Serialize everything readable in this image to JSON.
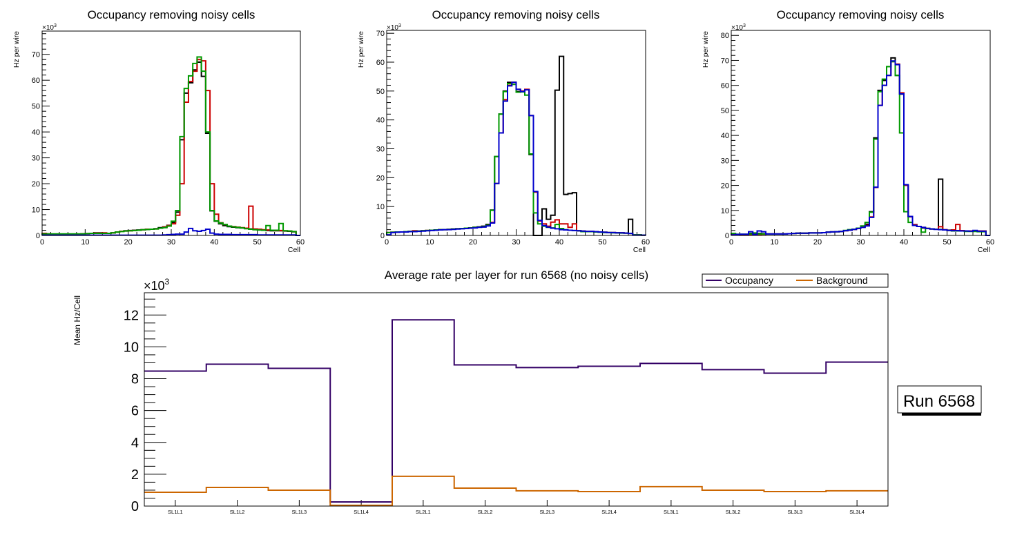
{
  "chart_data": [
    {
      "type": "line",
      "subtype": "step-histogram",
      "title": "Occupancy removing noisy cells",
      "xlabel": "Cell",
      "ylabel": "Hz per wire",
      "y_multiplier_label": "×10",
      "y_multiplier_exp": "3",
      "xlim": [
        0,
        60
      ],
      "ylim": [
        0,
        79
      ],
      "x_ticks": [
        0,
        10,
        20,
        30,
        40,
        50,
        60
      ],
      "y_ticks": [
        0,
        10,
        20,
        30,
        40,
        50,
        60,
        70
      ],
      "bin_edges_start": 0,
      "bin_width": 1,
      "series": [
        {
          "name": "black",
          "color": "#000000",
          "values": [
            0.5,
            0.5,
            0.5,
            0.5,
            0.5,
            0.5,
            0.5,
            0.5,
            0.5,
            0.6,
            0.7,
            0.8,
            1.0,
            1.0,
            0.9,
            0.8,
            1.0,
            1.3,
            1.6,
            1.8,
            1.9,
            2.0,
            2.1,
            2.2,
            2.3,
            2.4,
            2.6,
            3.0,
            3.3,
            3.9,
            5.0,
            9.0,
            37,
            55,
            59,
            64,
            67,
            61.5,
            39.5,
            9.5,
            5.5,
            4.5,
            3.8,
            3.4,
            3.2,
            3.0,
            2.9,
            2.7,
            2.5,
            2.3,
            2.2,
            2.1,
            1.9,
            1.8,
            1.8,
            1.8,
            1.7,
            1.6,
            1.4,
            0
          ]
        },
        {
          "name": "red",
          "color": "#cc0000",
          "values": [
            0.8,
            0.6,
            0.5,
            0.5,
            0.5,
            0.5,
            0.5,
            0.5,
            0.5,
            0.6,
            0.7,
            0.8,
            0.9,
            0.9,
            1.0,
            0.8,
            1.0,
            1.3,
            1.6,
            1.7,
            1.8,
            1.9,
            2.0,
            2.2,
            2.4,
            2.4,
            2.5,
            2.8,
            3.2,
            3.8,
            4.5,
            7.8,
            20,
            51.5,
            59.5,
            63.5,
            68,
            67.5,
            56,
            20,
            8.2,
            4.9,
            4.2,
            3.6,
            3.4,
            3.2,
            3.0,
            2.8,
            11.3,
            2.5,
            2.4,
            2.2,
            2.1,
            2.0,
            1.9,
            1.9,
            1.8,
            1.7,
            1.5,
            0
          ]
        },
        {
          "name": "green",
          "color": "#009900",
          "values": [
            0.6,
            0.6,
            0.6,
            0.6,
            0.6,
            0.6,
            0.6,
            0.6,
            0.6,
            0.6,
            0.7,
            0.8,
            0.8,
            0.8,
            0.8,
            0.8,
            1.0,
            1.3,
            1.5,
            1.7,
            1.8,
            1.9,
            2.0,
            2.2,
            2.3,
            2.4,
            2.5,
            2.8,
            3.0,
            3.6,
            5.5,
            9.6,
            38.2,
            56.8,
            61.7,
            66.5,
            69,
            63.5,
            40,
            9.6,
            5.6,
            4.8,
            4.2,
            3.6,
            3.3,
            3.1,
            2.9,
            2.6,
            2.4,
            2.2,
            2.1,
            2.0,
            3.8,
            2.0,
            2.0,
            4.6,
            1.8,
            1.7,
            1.5,
            0
          ]
        },
        {
          "name": "blue",
          "color": "#0000cc",
          "values": [
            0.1,
            0.1,
            0.1,
            0.1,
            0.1,
            0.1,
            0.1,
            0.1,
            0.1,
            0.1,
            0.1,
            0.1,
            0.1,
            0.1,
            0.1,
            0.1,
            0.1,
            0.1,
            0.1,
            0.1,
            0.1,
            0.1,
            0.1,
            0.1,
            0.1,
            0.1,
            0.1,
            0.1,
            0.2,
            0.3,
            0.4,
            0.5,
            0.5,
            1.3,
            2.7,
            1.8,
            1.6,
            1.9,
            2.4,
            0.9,
            0.5,
            0.4,
            0.4,
            0.4,
            0.3,
            0.3,
            0.3,
            0.3,
            0.3,
            0.3,
            0.2,
            0.2,
            0.2,
            0.2,
            0.2,
            0.2,
            0.2,
            0.2,
            0.2,
            0
          ]
        }
      ]
    },
    {
      "type": "line",
      "subtype": "step-histogram",
      "title": "Occupancy removing noisy cells",
      "xlabel": "Cell",
      "ylabel": "Hz per wire",
      "y_multiplier_label": "×10",
      "y_multiplier_exp": "3",
      "xlim": [
        0,
        60
      ],
      "ylim": [
        0,
        71
      ],
      "x_ticks": [
        0,
        10,
        20,
        30,
        40,
        50,
        60
      ],
      "y_ticks": [
        0,
        10,
        20,
        30,
        40,
        50,
        60,
        70
      ],
      "bin_edges_start": 0,
      "bin_width": 1,
      "series": [
        {
          "name": "black",
          "color": "#000000",
          "values": [
            1.0,
            1.1,
            1.2,
            1.2,
            1.3,
            1.4,
            1.4,
            1.5,
            1.6,
            1.7,
            1.8,
            1.9,
            2.0,
            2.0,
            2.1,
            2.2,
            2.3,
            2.4,
            2.5,
            2.6,
            2.8,
            3.0,
            3.2,
            3.8,
            8.8,
            27.3,
            42,
            50,
            53,
            53,
            49.8,
            50,
            50.5,
            28,
            0,
            0,
            9.2,
            5.6,
            7.0,
            50.3,
            62,
            14.2,
            14.5,
            14.8,
            1.6,
            1.5,
            1.4,
            1.4,
            1.3,
            1.2,
            1.1,
            1.0,
            1.0,
            0.9,
            0.9,
            0.8,
            5.6,
            0.2,
            0.2,
            0.1
          ]
        },
        {
          "name": "red",
          "color": "#cc0000",
          "values": [
            1.0,
            1.1,
            1.2,
            1.2,
            1.3,
            1.4,
            1.6,
            1.5,
            1.6,
            1.7,
            1.8,
            1.9,
            2.0,
            2.0,
            2.1,
            2.2,
            2.3,
            2.4,
            2.5,
            2.6,
            2.8,
            2.9,
            3.0,
            3.5,
            4.5,
            18,
            35.5,
            47,
            52,
            53,
            50.6,
            50,
            50.6,
            41.5,
            15,
            5,
            4,
            3.2,
            4.6,
            5.4,
            4,
            4,
            2.8,
            4,
            1.6,
            1.5,
            1.4,
            1.4,
            1.3,
            1.2,
            1.1,
            1.0,
            1.0,
            0.9,
            0.9,
            0.8,
            0.7,
            0.2,
            0.2,
            0.1
          ]
        },
        {
          "name": "green",
          "color": "#009900",
          "values": [
            1.0,
            1.1,
            1.2,
            1.2,
            1.3,
            1.4,
            1.4,
            1.5,
            1.6,
            1.7,
            1.8,
            1.9,
            2.0,
            2.0,
            2.1,
            2.2,
            2.3,
            2.4,
            2.5,
            2.6,
            2.8,
            2.9,
            3.0,
            3.5,
            8.7,
            27.3,
            42,
            49.8,
            52.6,
            52.3,
            49.6,
            49.7,
            48.6,
            28.2,
            7.8,
            4,
            3.2,
            2.8,
            2.6,
            3.8,
            2.4,
            2.0,
            1.8,
            1.7,
            1.6,
            1.3,
            1.3,
            1.3,
            1.2,
            1.1,
            1.0,
            1.0,
            0.9,
            0.9,
            0.8,
            0.8,
            0.7,
            0.2,
            0.2,
            0.1
          ]
        },
        {
          "name": "blue",
          "color": "#0000cc",
          "values": [
            0.2,
            1.0,
            1.1,
            1.2,
            1.2,
            1.3,
            1.3,
            1.4,
            1.5,
            1.6,
            1.7,
            1.8,
            1.9,
            2.0,
            2.0,
            2.1,
            2.2,
            2.3,
            2.4,
            2.5,
            2.6,
            2.8,
            2.9,
            3.3,
            4.3,
            18,
            35.5,
            46.5,
            51.8,
            53,
            50.6,
            49.8,
            50.4,
            41.5,
            15.2,
            5.2,
            3.4,
            2.9,
            2.5,
            2.3,
            2.0,
            1.9,
            1.8,
            1.7,
            1.6,
            1.5,
            1.4,
            1.4,
            1.3,
            1.2,
            1.1,
            1.0,
            1.0,
            0.9,
            0.9,
            0.8,
            0.7,
            0.1,
            0.1,
            0.1
          ]
        }
      ]
    },
    {
      "type": "line",
      "subtype": "step-histogram",
      "title": "Occupancy removing noisy cells",
      "xlabel": "Cell",
      "ylabel": "Hz per wire",
      "y_multiplier_label": "×10",
      "y_multiplier_exp": "3",
      "xlim": [
        0,
        60
      ],
      "ylim": [
        0,
        82
      ],
      "x_ticks": [
        0,
        10,
        20,
        30,
        40,
        50,
        60
      ],
      "y_ticks": [
        0,
        10,
        20,
        30,
        40,
        50,
        60,
        70,
        80
      ],
      "bin_edges_start": 0,
      "bin_width": 1,
      "series": [
        {
          "name": "black",
          "color": "#000000",
          "values": [
            0.6,
            0.3,
            0.2,
            0.2,
            0.8,
            0.9,
            0.8,
            0.7,
            0.6,
            0.6,
            0.6,
            0.6,
            0.6,
            0.7,
            0.8,
            0.9,
            0.9,
            0.9,
            1.0,
            1.0,
            1.0,
            1.1,
            1.3,
            1.4,
            1.5,
            1.6,
            1.9,
            2.1,
            2.4,
            2.8,
            3.5,
            4.5,
            9.5,
            39,
            58,
            62,
            67.5,
            71,
            64,
            56.5,
            20,
            7.5,
            4.3,
            3.6,
            3.0,
            2.8,
            2.6,
            2.5,
            22.5,
            2.2,
            2.1,
            2.0,
            1.9,
            1.9,
            1.8,
            1.8,
            1.8,
            1.8,
            1.8,
            0
          ]
        },
        {
          "name": "red",
          "color": "#cc0000",
          "values": [
            0.4,
            0.3,
            0.1,
            0.1,
            0.3,
            0.4,
            0.4,
            0.5,
            0.6,
            0.6,
            0.6,
            0.6,
            0.6,
            0.7,
            0.8,
            0.9,
            0.9,
            0.9,
            1.0,
            1.0,
            1.0,
            1.1,
            1.3,
            1.4,
            1.5,
            1.6,
            1.9,
            2.1,
            2.4,
            2.8,
            3.3,
            4.0,
            7.4,
            19.2,
            52,
            60,
            64,
            69.5,
            68.5,
            57,
            20,
            7.5,
            4.3,
            3.6,
            3.2,
            2.8,
            2.6,
            2.5,
            3.5,
            2.3,
            2.0,
            2.2,
            4.4,
            1.9,
            1.8,
            1.8,
            1.8,
            1.8,
            1.8,
            0
          ]
        },
        {
          "name": "green",
          "color": "#009900",
          "values": [
            0.8,
            0.5,
            0.5,
            0.5,
            0.6,
            1.0,
            0.6,
            0.6,
            0.6,
            0.6,
            0.6,
            0.6,
            0.6,
            0.7,
            0.8,
            0.9,
            0.9,
            0.9,
            1.0,
            1.0,
            1.0,
            1.1,
            1.3,
            1.4,
            1.5,
            1.6,
            2.0,
            2.3,
            2.5,
            2.9,
            3.8,
            5.2,
            9.3,
            38.5,
            57.5,
            62.5,
            67.5,
            69.5,
            64,
            41,
            9.5,
            5.2,
            4.0,
            3.6,
            1.3,
            2.8,
            2.6,
            2.5,
            2.4,
            2.2,
            2.0,
            1.8,
            1.8,
            1.8,
            1.6,
            1.6,
            1.6,
            1.5,
            1.5,
            0
          ]
        },
        {
          "name": "blue",
          "color": "#0000cc",
          "values": [
            0.2,
            0.4,
            0.5,
            0.5,
            1.5,
            0.4,
            1.8,
            1.5,
            0.6,
            0.6,
            0.6,
            0.6,
            0.6,
            0.7,
            0.8,
            0.9,
            0.9,
            0.9,
            1.0,
            1.0,
            1.0,
            1.1,
            1.3,
            1.4,
            1.5,
            1.6,
            1.9,
            2.1,
            2.4,
            2.8,
            3.2,
            3.8,
            7.2,
            19.3,
            52,
            60,
            64,
            69.8,
            68.3,
            56.6,
            20.3,
            7.6,
            4.0,
            3.6,
            3.2,
            2.8,
            2.6,
            2.4,
            2.3,
            2.2,
            2.0,
            1.9,
            1.9,
            1.8,
            1.8,
            1.7,
            2.0,
            1.7,
            1.7,
            0
          ]
        }
      ]
    },
    {
      "type": "line",
      "subtype": "step-histogram",
      "title": "Average rate per layer for run 6568 (no noisy cells)",
      "xlabel": "",
      "ylabel": "Mean Hz/Cell",
      "y_multiplier_label": "×10",
      "y_multiplier_exp": "3",
      "categories": [
        "SL1L1",
        "SL1L2",
        "SL1L3",
        "SL1L4",
        "SL2L1",
        "SL2L2",
        "SL2L3",
        "SL2L4",
        "SL3L1",
        "SL3L2",
        "SL3L3",
        "SL3L4"
      ],
      "ylim": [
        0,
        13.4
      ],
      "y_ticks": [
        0,
        2,
        4,
        6,
        8,
        10,
        12
      ],
      "legend": "top-right",
      "series": [
        {
          "name": "Occupancy",
          "color": "#330066",
          "values": [
            8.48,
            8.91,
            8.65,
            0.26,
            11.7,
            8.87,
            8.7,
            8.78,
            8.96,
            8.57,
            8.35,
            9.04
          ]
        },
        {
          "name": "Background",
          "color": "#cc6600",
          "values": [
            0.87,
            1.17,
            1.0,
            0.05,
            1.87,
            1.13,
            0.96,
            0.91,
            1.22,
            1.0,
            0.91,
            0.96
          ]
        }
      ],
      "annotation": "Run 6568"
    }
  ]
}
